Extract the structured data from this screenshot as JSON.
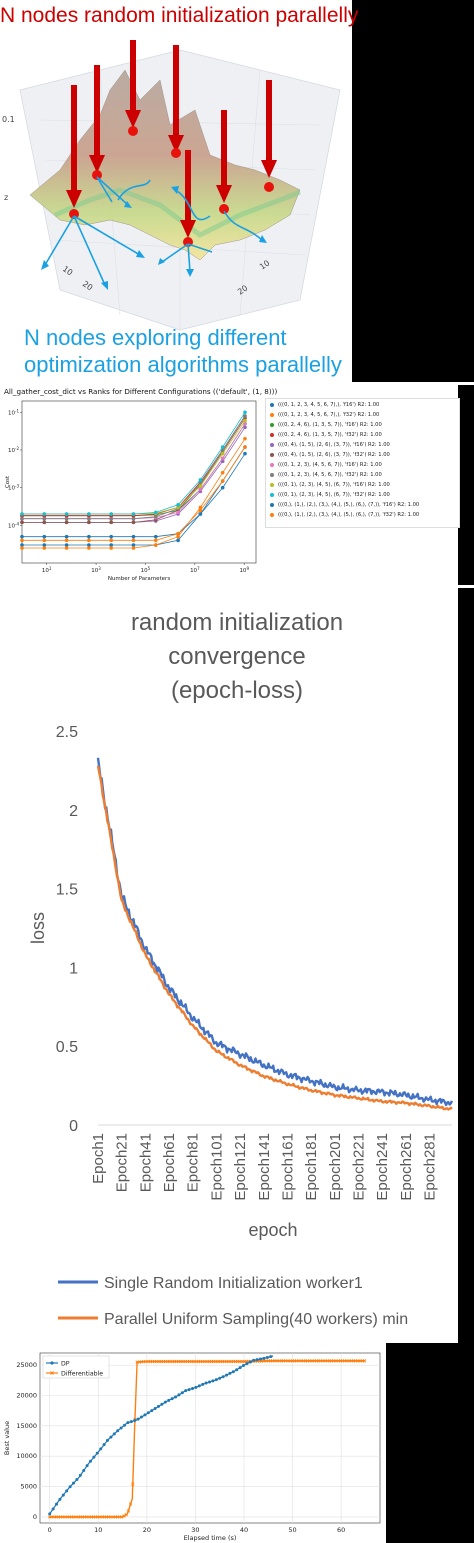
{
  "panel1": {
    "title": "N nodes random initialization parallelly",
    "subtitle": "N nodes exploring different optimization algorithms parallelly",
    "axis_labels": {
      "z": "z",
      "z_tick": "0.1",
      "tick_10": "10",
      "tick_20": "20",
      "tick_10b": "10",
      "tick_20b": "20"
    },
    "colors": {
      "title": "#cc0000",
      "subtitle": "#1ba1e2",
      "arrow_red": "#cc0000",
      "arrow_blue": "#1ba1e2"
    }
  },
  "chart_data": [
    {
      "type": "scatter",
      "title": "All_gather_cost_dict vs Ranks for Different Configurations (('default', (1, 8)))",
      "xlabel": "Number of Parameters",
      "ylabel": "Cost",
      "xscale": "log",
      "yscale": "log",
      "xticks": [
        "10^1",
        "10^3",
        "10^5",
        "10^7",
        "10^9"
      ],
      "yticks": [
        "10^-4",
        "10^-3",
        "10^-2",
        "10^-1"
      ],
      "xlim": [
        1,
        3000000000
      ],
      "ylim": [
        1e-05,
        0.2
      ],
      "legend_position": "right",
      "x": [
        1,
        8,
        64,
        512,
        4096,
        32768,
        262144,
        2097152,
        16777216,
        134217728,
        1073741824
      ],
      "series": [
        {
          "name": "(((0, 1, 2, 3, 4, 5, 6, 7),), 'f16') R2: 1.00",
          "color": "#1f77b4",
          "values": [
            3e-05,
            3e-05,
            3e-05,
            3e-05,
            3e-05,
            3e-05,
            3e-05,
            4e-05,
            0.0002,
            0.0015,
            0.012
          ]
        },
        {
          "name": "(((0, 1, 2, 3, 4, 5, 6, 7),), 'f32') R2: 1.00",
          "color": "#ff7f0e",
          "values": [
            2.5e-05,
            2.5e-05,
            2.5e-05,
            2.5e-05,
            2.5e-05,
            2.5e-05,
            3e-05,
            5e-05,
            0.0003,
            0.0025,
            0.02
          ]
        },
        {
          "name": "(((0, 2, 4, 6), (1, 3, 5, 7)), 'f16') R2: 1.00",
          "color": "#2ca02c",
          "values": [
            0.00018,
            0.00018,
            0.00018,
            0.00018,
            0.00018,
            0.00018,
            0.00019,
            0.00025,
            0.0009,
            0.006,
            0.05
          ]
        },
        {
          "name": "(((0, 2, 4, 6), (1, 3, 5, 7)), 'f32') R2: 1.00",
          "color": "#d62728",
          "values": [
            0.00018,
            0.00018,
            0.00018,
            0.00018,
            0.00018,
            0.00018,
            0.0002,
            0.0003,
            0.0014,
            0.01,
            0.08
          ]
        },
        {
          "name": "(((0, 4), (1, 5), (2, 6), (3, 7)), 'f16') R2: 1.00",
          "color": "#9467bd",
          "values": [
            0.00012,
            0.00012,
            0.00012,
            0.00012,
            0.00012,
            0.00012,
            0.00013,
            0.0002,
            0.0008,
            0.005,
            0.04
          ]
        },
        {
          "name": "(((0, 4), (1, 5), (2, 6), (3, 7)), 'f32') R2: 1.00",
          "color": "#8c564b",
          "values": [
            0.00012,
            0.00012,
            0.00012,
            0.00012,
            0.00012,
            0.00012,
            0.00014,
            0.00025,
            0.0012,
            0.009,
            0.07
          ]
        },
        {
          "name": "(((0, 1, 2, 3), (4, 5, 6, 7)), 'f16') R2: 1.00",
          "color": "#e377c2",
          "values": [
            0.00015,
            0.00015,
            0.00015,
            0.00015,
            0.00015,
            0.00015,
            0.00016,
            0.00022,
            0.0009,
            0.006,
            0.05
          ]
        },
        {
          "name": "(((0, 1, 2, 3), (4, 5, 6, 7)), 'f32') R2: 1.00",
          "color": "#7f7f7f",
          "values": [
            0.00015,
            0.00015,
            0.00015,
            0.00015,
            0.00015,
            0.00015,
            0.00017,
            0.00028,
            0.0013,
            0.01,
            0.08
          ]
        },
        {
          "name": "(((0, 1), (2, 3), (4, 5), (6, 7)), 'f16') R2: 1.00",
          "color": "#bcbd22",
          "values": [
            0.0002,
            0.0002,
            0.0002,
            0.0002,
            0.0002,
            0.0002,
            0.00021,
            0.0003,
            0.0011,
            0.008,
            0.06
          ]
        },
        {
          "name": "(((0, 1), (2, 3), (4, 5), (6, 7)), 'f32') R2: 1.00",
          "color": "#17becf",
          "values": [
            0.0002,
            0.0002,
            0.0002,
            0.0002,
            0.0002,
            0.0002,
            0.00022,
            0.00035,
            0.0016,
            0.012,
            0.1
          ]
        },
        {
          "name": "(((0,), (1,), (2,), (3,), (4,), (5,), (6,), (7,)), 'f16') R2: 1.00",
          "color": "#1f77b4",
          "values": [
            5e-05,
            5e-05,
            5e-05,
            5e-05,
            5e-05,
            5e-05,
            5e-05,
            6e-05,
            0.0002,
            0.001,
            0.008
          ]
        },
        {
          "name": "(((0,), (1,), (2,), (3,), (4,), (5,), (6,), (7,)), 'f32') R2: 1.00",
          "color": "#ff7f0e",
          "values": [
            4e-05,
            4e-05,
            4e-05,
            4e-05,
            4e-05,
            4e-05,
            4e-05,
            6e-05,
            0.00025,
            0.0015,
            0.012
          ]
        }
      ]
    },
    {
      "type": "line",
      "title_lines": [
        "random initialization",
        "convergence",
        "(epoch-loss)"
      ],
      "xlabel": "epoch",
      "ylabel": "loss",
      "ylim": [
        0,
        2.5
      ],
      "yticks": [
        "0",
        "0.5",
        "1",
        "1.5",
        "2",
        "2.5"
      ],
      "xticks": [
        "Epoch1",
        "Epoch21",
        "Epoch41",
        "Epoch61",
        "Epoch81",
        "Epoch101",
        "Epoch121",
        "Epoch141",
        "Epoch161",
        "Epoch181",
        "Epoch201",
        "Epoch221",
        "Epoch241",
        "Epoch261",
        "Epoch281"
      ],
      "legend_position": "bottom",
      "x": [
        1,
        21,
        41,
        61,
        81,
        101,
        121,
        141,
        161,
        181,
        201,
        221,
        241,
        261,
        281,
        300
      ],
      "series": [
        {
          "name": "Single Random Initialization worker1",
          "color": "#4472c4",
          "values": [
            2.3,
            1.45,
            1.12,
            0.87,
            0.68,
            0.52,
            0.45,
            0.38,
            0.32,
            0.28,
            0.24,
            0.22,
            0.21,
            0.19,
            0.16,
            0.14
          ]
        },
        {
          "name": "Parallel Uniform Sampling(40 workers) min",
          "color": "#ed7d31",
          "values": [
            2.28,
            1.42,
            1.08,
            0.83,
            0.63,
            0.47,
            0.38,
            0.31,
            0.26,
            0.22,
            0.19,
            0.17,
            0.15,
            0.14,
            0.12,
            0.1
          ]
        }
      ]
    },
    {
      "type": "line",
      "title": "",
      "xlabel": "Elapsed time (s)",
      "ylabel": "Best value",
      "xlim": [
        -2,
        68
      ],
      "ylim": [
        -1000,
        27000
      ],
      "xticks": [
        "0",
        "10",
        "20",
        "30",
        "40",
        "50",
        "60"
      ],
      "yticks": [
        "0",
        "5000",
        "10000",
        "15000",
        "20000",
        "25000"
      ],
      "grid": true,
      "legend_position": "top-left",
      "series": [
        {
          "name": "DP",
          "color": "#1f77b4",
          "x": [
            0,
            2,
            4,
            6,
            8,
            10,
            12,
            14,
            16,
            18,
            20,
            22,
            24,
            26,
            28,
            30,
            32,
            34,
            36,
            38,
            40,
            42,
            44,
            46
          ],
          "values": [
            500,
            2800,
            4800,
            6500,
            8800,
            10700,
            12700,
            14200,
            15500,
            16000,
            17000,
            18000,
            19000,
            19800,
            20800,
            21300,
            22000,
            22500,
            23200,
            24000,
            25000,
            25800,
            26100,
            26500
          ]
        },
        {
          "name": "Differentiable",
          "color": "#ff7f0e",
          "x": [
            0,
            4,
            8,
            12,
            15,
            16,
            17,
            17.5,
            18,
            20,
            25,
            30,
            35,
            40,
            45,
            50,
            55,
            60,
            65
          ],
          "values": [
            0,
            0,
            0,
            0,
            0,
            500,
            3000,
            15000,
            25500,
            25600,
            25600,
            25600,
            25600,
            25600,
            25700,
            25700,
            25700,
            25700,
            25700
          ]
        }
      ]
    }
  ],
  "misc": {
    "black_bar_color": "#000000"
  }
}
